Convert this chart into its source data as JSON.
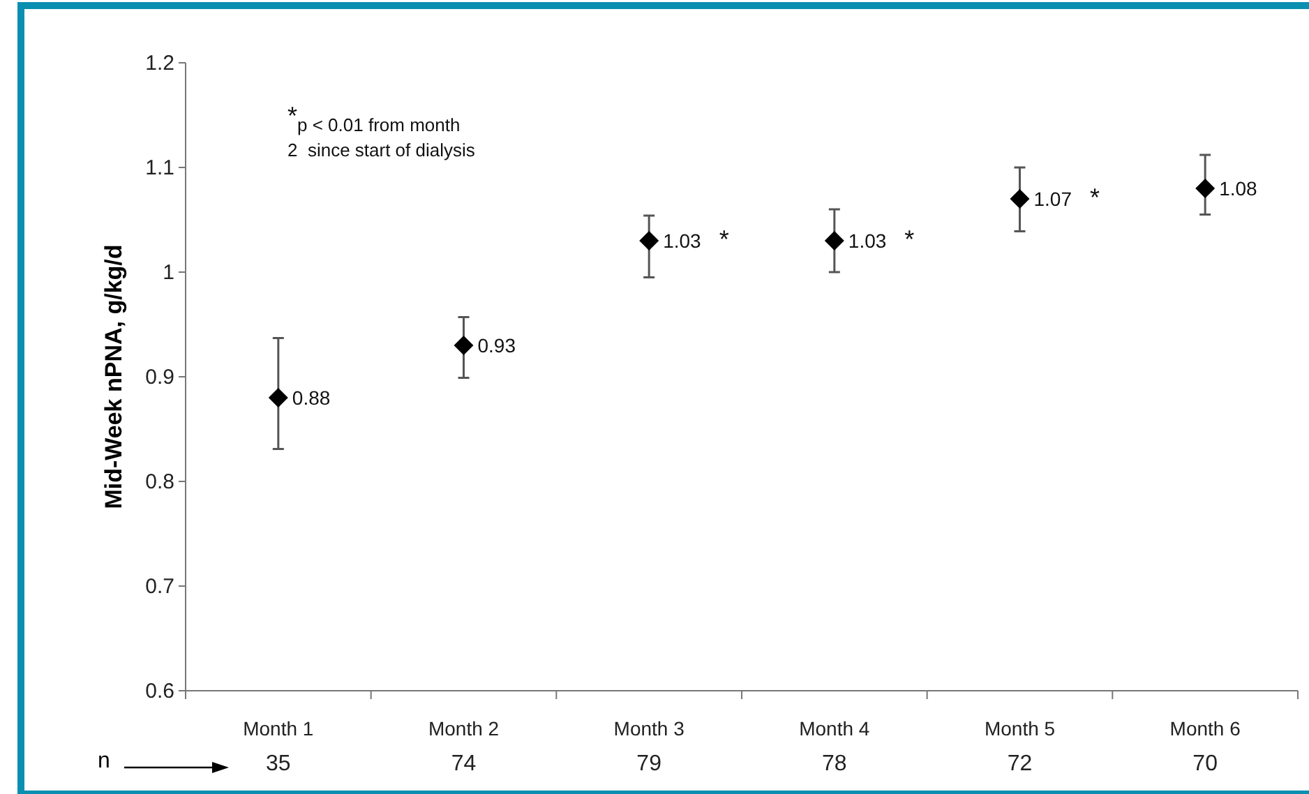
{
  "chart_data": {
    "type": "scatter",
    "ylabel": "Mid-Week nPNA, g/kg/d",
    "categories": [
      "Month 1\n35",
      "Month 2\n74",
      "Month 3\n79",
      "Month 4\n78",
      "Month 5\n72",
      "Month 6\n70"
    ],
    "values": [
      0.88,
      0.93,
      1.03,
      1.03,
      1.07,
      1.08
    ],
    "value_labels": [
      "0.88",
      "0.93",
      "1.03 *",
      "1.03 *",
      "1.07 *",
      "1.08"
    ],
    "errors": [
      [
        0.831,
        0.937
      ],
      [
        0.899,
        0.957
      ],
      [
        0.995,
        1.054
      ],
      [
        1.0,
        1.06
      ],
      [
        1.039,
        1.1
      ],
      [
        1.055,
        1.112
      ]
    ],
    "color": "#000000",
    "marker": "diamond",
    "grid": false,
    "ylim": [
      0.6,
      1.2
    ],
    "yticks": [
      0.6,
      0.7,
      0.8,
      0.9,
      1,
      1.1,
      1.2
    ],
    "annotations": [
      "*p < 0.01 from month 2  since start of dialysis",
      "n"
    ]
  }
}
